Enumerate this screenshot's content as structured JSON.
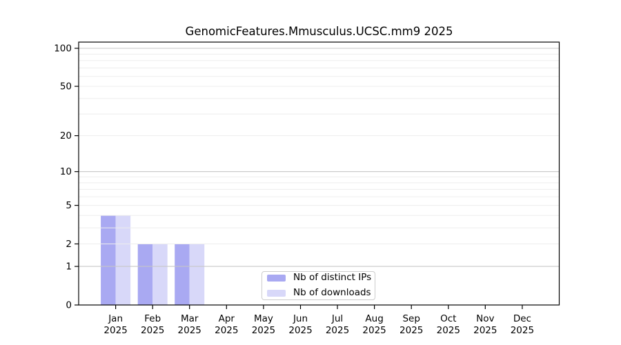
{
  "chart_data": {
    "type": "bar",
    "title": "GenomicFeatures.Mmusculus.UCSC.mm9 2025",
    "categories": [
      "Jan",
      "Feb",
      "Mar",
      "Apr",
      "May",
      "Jun",
      "Jul",
      "Aug",
      "Sep",
      "Oct",
      "Nov",
      "Dec"
    ],
    "x_year_label": "2025",
    "series": [
      {
        "name": "Nb of distinct IPs",
        "color": "#a9a9f2",
        "values": [
          4,
          2,
          2,
          0,
          0,
          0,
          0,
          0,
          0,
          0,
          0,
          0
        ]
      },
      {
        "name": "Nb of downloads",
        "color": "#d8d8f9",
        "values": [
          4,
          2,
          2,
          0,
          0,
          0,
          0,
          0,
          0,
          0,
          0,
          0
        ]
      }
    ],
    "yscale": "log1p",
    "ylim": [
      0,
      112
    ],
    "yticks": [
      0,
      1,
      2,
      5,
      10,
      20,
      50,
      100
    ],
    "grid_major_lines": [
      1,
      10,
      100
    ],
    "grid_minor_lines": [
      2,
      3,
      4,
      5,
      6,
      7,
      8,
      9,
      20,
      30,
      40,
      50,
      60,
      70,
      80,
      90
    ],
    "legend_position": "lower center inside",
    "grid": "on",
    "colors": {
      "grid_major": "#c6c6c6",
      "grid_minor": "#ededed",
      "axis": "#000000",
      "legend_border": "#cccccc",
      "background": "#ffffff"
    }
  }
}
